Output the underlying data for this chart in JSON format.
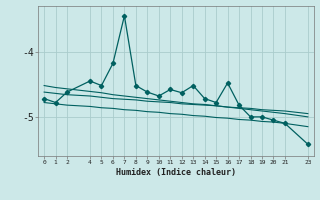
{
  "xlabel": "Humidex (Indice chaleur)",
  "bg_color": "#cce8e8",
  "grid_color": "#aacccc",
  "line_color": "#006060",
  "x": [
    0,
    1,
    2,
    4,
    5,
    6,
    7,
    8,
    9,
    10,
    11,
    12,
    13,
    14,
    15,
    16,
    17,
    18,
    19,
    20,
    21,
    23
  ],
  "y_main": [
    -4.72,
    -4.78,
    -4.62,
    -4.45,
    -4.52,
    -4.18,
    -3.45,
    -4.52,
    -4.62,
    -4.68,
    -4.58,
    -4.63,
    -4.52,
    -4.72,
    -4.78,
    -4.48,
    -4.82,
    -5.0,
    -5.0,
    -5.05,
    -5.1,
    -5.42
  ],
  "y_line1": [
    -4.62,
    -4.64,
    -4.66,
    -4.68,
    -4.7,
    -4.72,
    -4.73,
    -4.74,
    -4.76,
    -4.77,
    -4.78,
    -4.8,
    -4.81,
    -4.82,
    -4.83,
    -4.85,
    -4.86,
    -4.87,
    -4.89,
    -4.9,
    -4.91,
    -4.95
  ],
  "y_line2": [
    -4.52,
    -4.55,
    -4.57,
    -4.61,
    -4.63,
    -4.66,
    -4.68,
    -4.7,
    -4.72,
    -4.74,
    -4.76,
    -4.78,
    -4.8,
    -4.81,
    -4.83,
    -4.85,
    -4.87,
    -4.89,
    -4.91,
    -4.93,
    -4.95,
    -5.0
  ],
  "y_line3": [
    -4.78,
    -4.8,
    -4.82,
    -4.84,
    -4.86,
    -4.87,
    -4.89,
    -4.9,
    -4.92,
    -4.93,
    -4.95,
    -4.96,
    -4.98,
    -4.99,
    -5.01,
    -5.02,
    -5.04,
    -5.05,
    -5.07,
    -5.08,
    -5.1,
    -5.15
  ],
  "ylim": [
    -5.6,
    -3.3
  ],
  "xlim": [
    -0.5,
    23.5
  ],
  "yticks": [
    -5,
    -4
  ],
  "xticks": [
    0,
    1,
    2,
    4,
    5,
    6,
    7,
    8,
    9,
    10,
    11,
    12,
    13,
    14,
    15,
    16,
    17,
    18,
    19,
    20,
    21,
    23
  ],
  "figw": 3.2,
  "figh": 2.0,
  "dpi": 100
}
